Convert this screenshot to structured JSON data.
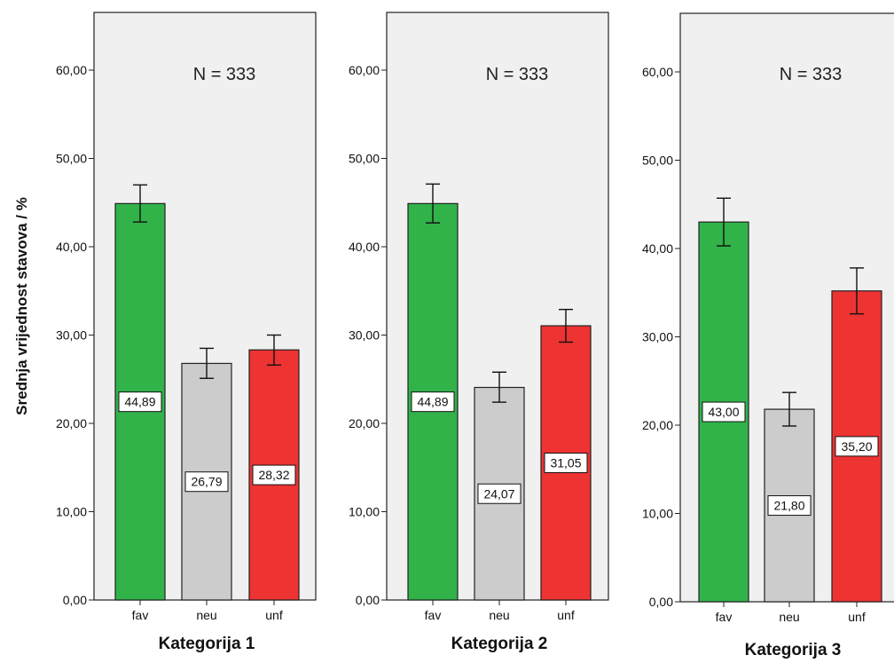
{
  "y_axis_title": "Srednja vrijednost stavova / %",
  "colors": {
    "panel_bg": "#f0f0f0",
    "fav": "#31b34a",
    "neu": "#cccccc",
    "unf": "#ee3333",
    "frame": "#222222"
  },
  "chart_data": [
    {
      "type": "bar",
      "title": "Kategorija 1",
      "annotation": "N = 333",
      "ylabel": "Srednja vrijednost stavova / %",
      "ylim": [
        0,
        66
      ],
      "yticks": [
        "0,00",
        "10,00",
        "20,00",
        "30,00",
        "40,00",
        "50,00",
        "60,00"
      ],
      "categories": [
        "fav",
        "neu",
        "unf"
      ],
      "values": [
        44.89,
        26.79,
        28.32
      ],
      "value_labels": [
        "44,89",
        "26,79",
        "28,32"
      ],
      "error_low": [
        42.8,
        25.1,
        26.6
      ],
      "error_high": [
        47.0,
        28.5,
        30.0
      ],
      "colors": [
        "#31b34a",
        "#cccccc",
        "#ee3333"
      ],
      "grid": false
    },
    {
      "type": "bar",
      "title": "Kategorija 2",
      "annotation": "N = 333",
      "ylabel": "",
      "ylim": [
        0,
        66
      ],
      "yticks": [
        "0,00",
        "10,00",
        "20,00",
        "30,00",
        "40,00",
        "50,00",
        "60,00"
      ],
      "categories": [
        "fav",
        "neu",
        "unf"
      ],
      "values": [
        44.89,
        24.07,
        31.05
      ],
      "value_labels": [
        "44,89",
        "24,07",
        "31,05"
      ],
      "error_low": [
        42.7,
        22.4,
        29.2
      ],
      "error_high": [
        47.1,
        25.8,
        32.9
      ],
      "colors": [
        "#31b34a",
        "#cccccc",
        "#ee3333"
      ],
      "grid": false
    },
    {
      "type": "bar",
      "title": "Kategorija 3",
      "annotation": "N = 333",
      "ylabel": "",
      "ylim": [
        0,
        66
      ],
      "yticks": [
        "0,00",
        "10,00",
        "20,00",
        "30,00",
        "40,00",
        "50,00",
        "60,00"
      ],
      "categories": [
        "fav",
        "neu",
        "unf"
      ],
      "values": [
        43.0,
        21.8,
        35.2
      ],
      "value_labels": [
        "43,00",
        "21,80",
        "35,20"
      ],
      "error_low": [
        40.3,
        19.9,
        32.6
      ],
      "error_high": [
        45.7,
        23.7,
        37.8
      ],
      "colors": [
        "#31b34a",
        "#cccccc",
        "#ee3333"
      ],
      "grid": false
    }
  ]
}
